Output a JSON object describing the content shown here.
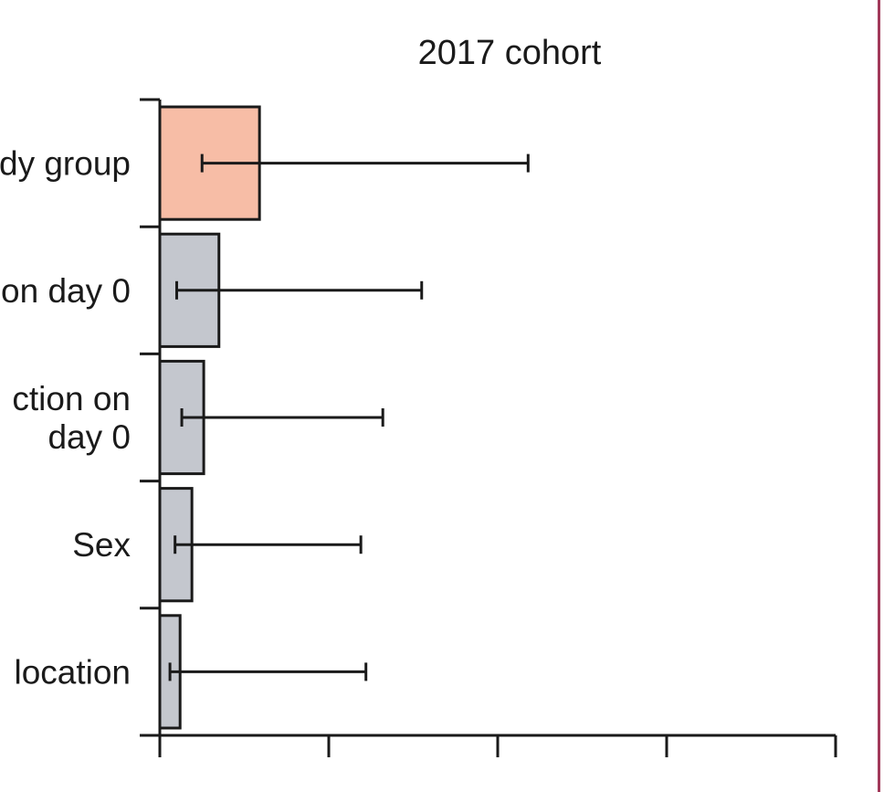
{
  "chart_data": {
    "type": "bar",
    "orientation": "horizontal",
    "title": "2017 cohort",
    "categories": [
      "dy group",
      "on day 0",
      "ction on day 0",
      "Sex",
      "location"
    ],
    "category_lines": [
      [
        "dy group"
      ],
      [
        "on day 0"
      ],
      [
        "ction on",
        "day 0"
      ],
      [
        "Sex"
      ],
      [
        "location"
      ]
    ],
    "values": [
      0.59,
      0.35,
      0.26,
      0.19,
      0.12
    ],
    "error_low": [
      0.25,
      0.1,
      0.13,
      0.09,
      0.06
    ],
    "error_high": [
      2.18,
      1.55,
      1.32,
      1.19,
      1.22
    ],
    "highlight_index": 0,
    "xlim": [
      0,
      4
    ],
    "x_ticks": [
      0,
      1,
      2,
      3,
      4
    ],
    "x_tick_labels_visible": false,
    "grid": false,
    "colors": {
      "highlight": "#f7bda6",
      "default": "#c4c7ce",
      "stroke": "#1a1a1a",
      "side_rule": "#a1395a"
    }
  }
}
